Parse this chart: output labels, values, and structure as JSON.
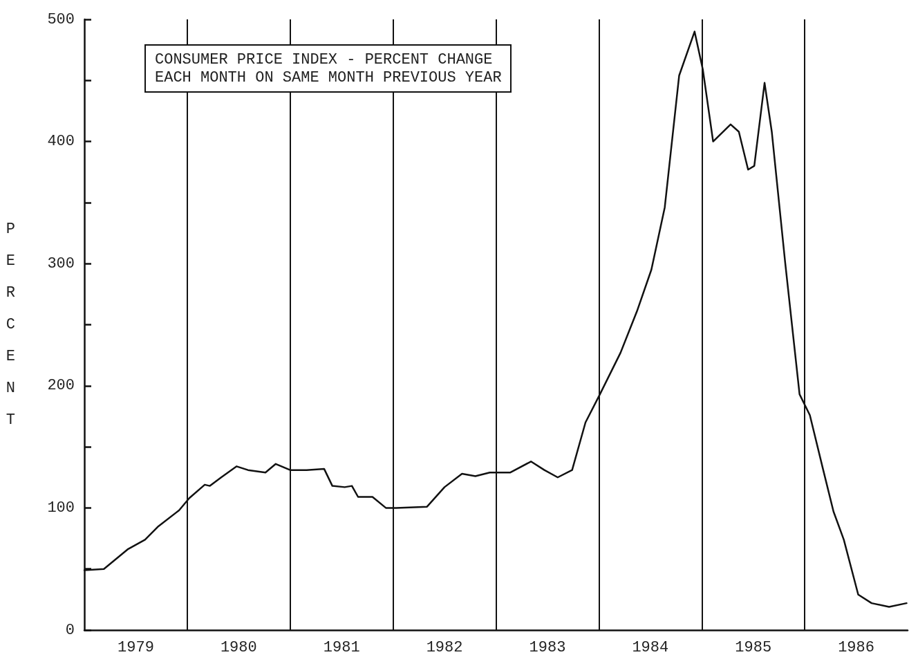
{
  "chart_data": {
    "type": "line",
    "title": "CONSUMER PRICE INDEX - PERCENT CHANGE\nEACH MONTH ON SAME MONTH PREVIOUS YEAR",
    "ylabel": "PERCENT",
    "x": [
      1979.0,
      1979.19,
      1979.42,
      1979.59,
      1979.72,
      1979.92,
      1980.02,
      1980.17,
      1980.22,
      1980.33,
      1980.48,
      1980.59,
      1980.76,
      1980.86,
      1981.0,
      1981.16,
      1981.33,
      1981.41,
      1981.53,
      1981.6,
      1981.66,
      1981.8,
      1981.93,
      1982.03,
      1982.33,
      1982.5,
      1982.67,
      1982.8,
      1982.94,
      1983.14,
      1983.34,
      1983.47,
      1983.6,
      1983.74,
      1983.87,
      1984.01,
      1984.21,
      1984.37,
      1984.51,
      1984.64,
      1984.78,
      1984.93,
      1985.01,
      1985.11,
      1985.28,
      1985.36,
      1985.45,
      1985.51,
      1985.61,
      1985.68,
      1985.81,
      1985.95,
      1986.05,
      1986.18,
      1986.28,
      1986.38,
      1986.52,
      1986.65,
      1986.82,
      1986.99
    ],
    "series": [
      {
        "color": "#111111",
        "values": [
          49,
          50,
          66,
          74,
          85,
          98,
          108,
          119,
          118,
          125,
          134,
          131,
          129,
          136,
          131,
          131,
          132,
          118,
          117,
          118,
          109,
          109,
          100,
          100,
          101,
          117,
          128,
          126,
          129,
          129,
          138,
          131,
          125,
          131,
          170,
          193,
          227,
          261,
          295,
          346,
          454,
          490,
          459,
          400,
          414,
          408,
          377,
          380,
          448,
          408,
          301,
          193,
          176,
          131,
          97,
          74,
          29,
          22,
          19,
          22
        ]
      }
    ],
    "xlim": [
      1979,
      1987
    ],
    "xticks": [
      {
        "value": 1979.5,
        "label": "1979"
      },
      {
        "value": 1980.5,
        "label": "1980"
      },
      {
        "value": 1981.5,
        "label": "1981"
      },
      {
        "value": 1982.5,
        "label": "1982"
      },
      {
        "value": 1983.5,
        "label": "1983"
      },
      {
        "value": 1984.5,
        "label": "1984"
      },
      {
        "value": 1985.5,
        "label": "1985"
      },
      {
        "value": 1986.5,
        "label": "1986"
      }
    ],
    "ylim": [
      0,
      500
    ],
    "yticks": [
      0,
      {
        "value": 50,
        "label": null
      },
      100,
      {
        "value": 150,
        "label": null
      },
      200,
      {
        "value": 250,
        "label": null
      },
      300,
      {
        "value": 350,
        "label": null
      },
      400,
      {
        "value": 450,
        "label": null
      },
      500
    ],
    "ref_lines": [
      {
        "axis": "x",
        "value": 1980
      },
      {
        "axis": "x",
        "value": 1981
      },
      {
        "axis": "x",
        "value": 1982
      },
      {
        "axis": "x",
        "value": 1983
      },
      {
        "axis": "x",
        "value": 1984
      },
      {
        "axis": "x",
        "value": 1985
      },
      {
        "axis": "x",
        "value": 1986
      }
    ],
    "grid": false,
    "marker": "none",
    "line_style": "solid"
  }
}
